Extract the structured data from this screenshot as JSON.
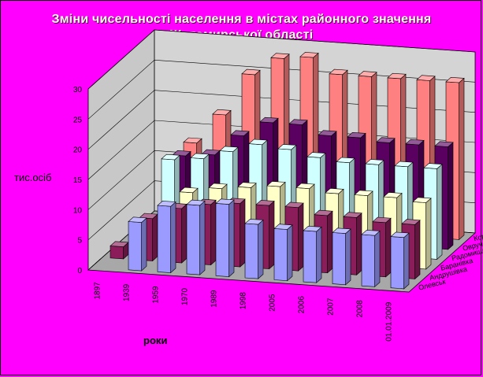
{
  "chart_data": {
    "type": "bar",
    "title_line1": "Зміни чисельності населення в містах районного значення",
    "title_line2": "Житомирської області",
    "xlabel": "роки",
    "ylabel": "тис.осіб",
    "ylim": [
      0,
      30
    ],
    "yticks": [
      "0",
      "5",
      "10",
      "15",
      "20",
      "25",
      "30"
    ],
    "categories": [
      "1897",
      "1939",
      "1959",
      "1970",
      "1989",
      "1998",
      "2005",
      "2006",
      "2007",
      "2008",
      "01.01.2009"
    ],
    "grid": true,
    "legend_placement": "right (depth axis)",
    "series": [
      {
        "name": "Олевськ",
        "color": "#9b9bff",
        "values": [
          null,
          8,
          11,
          11.5,
          12,
          9,
          8.5,
          8.5,
          8.5,
          8.5,
          8.5
        ]
      },
      {
        "name": "Андрушівка",
        "color": "#8b1e5a",
        "values": [
          2,
          7,
          9,
          10,
          10.5,
          10.5,
          10.5,
          9.5,
          9.5,
          9,
          9
        ]
      },
      {
        "name": "Баранівка",
        "color": "#ffffc8",
        "values": [
          null,
          null,
          10,
          11,
          11.5,
          12,
          12,
          11.5,
          11.5,
          11.5,
          11
        ]
      },
      {
        "name": "Радомишль",
        "color": "#cfffff",
        "values": [
          null,
          13.5,
          14,
          15.5,
          17,
          16.5,
          15.5,
          15,
          15,
          15,
          15
        ]
      },
      {
        "name": "Овруч",
        "color": "#5a0060",
        "values": [
          null,
          12.5,
          13,
          16.5,
          19,
          19,
          17.5,
          17.5,
          17,
          17,
          17
        ]
      },
      {
        "name": "Коростишів",
        "color": "#ff8080",
        "values": [
          null,
          13,
          18,
          25,
          28,
          28.5,
          26,
          26,
          26,
          26,
          26
        ]
      }
    ]
  }
}
